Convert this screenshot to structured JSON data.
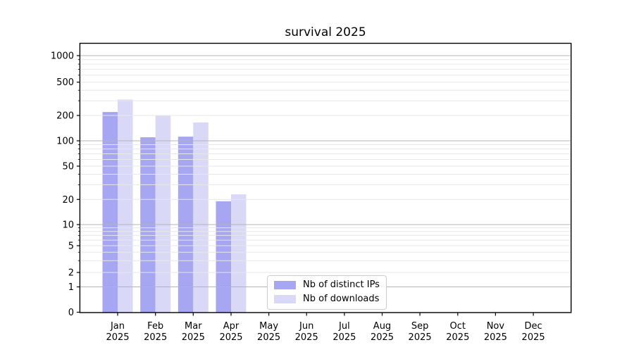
{
  "chart_data": {
    "type": "bar",
    "title": "survival 2025",
    "categories": [
      "Jan",
      "Feb",
      "Mar",
      "Apr",
      "May",
      "Jun",
      "Jul",
      "Aug",
      "Sep",
      "Oct",
      "Nov",
      "Dec"
    ],
    "x_year_label": "2025",
    "y_scale": "symlog",
    "y_tick_labels": [
      0,
      1,
      2,
      5,
      10,
      20,
      50,
      100,
      200,
      500,
      1000
    ],
    "ylim": [
      0,
      1400
    ],
    "grid": true,
    "legend_position": "inside-bottom-center",
    "series": [
      {
        "name": "Nb of distinct IPs",
        "color": "#a6a6f2",
        "values": [
          220,
          110,
          112,
          19,
          null,
          null,
          null,
          null,
          null,
          null,
          null,
          null
        ]
      },
      {
        "name": "Nb of downloads",
        "color": "#d9d9f7",
        "values": [
          310,
          198,
          165,
          23,
          null,
          null,
          null,
          null,
          null,
          null,
          null,
          null
        ]
      }
    ]
  }
}
